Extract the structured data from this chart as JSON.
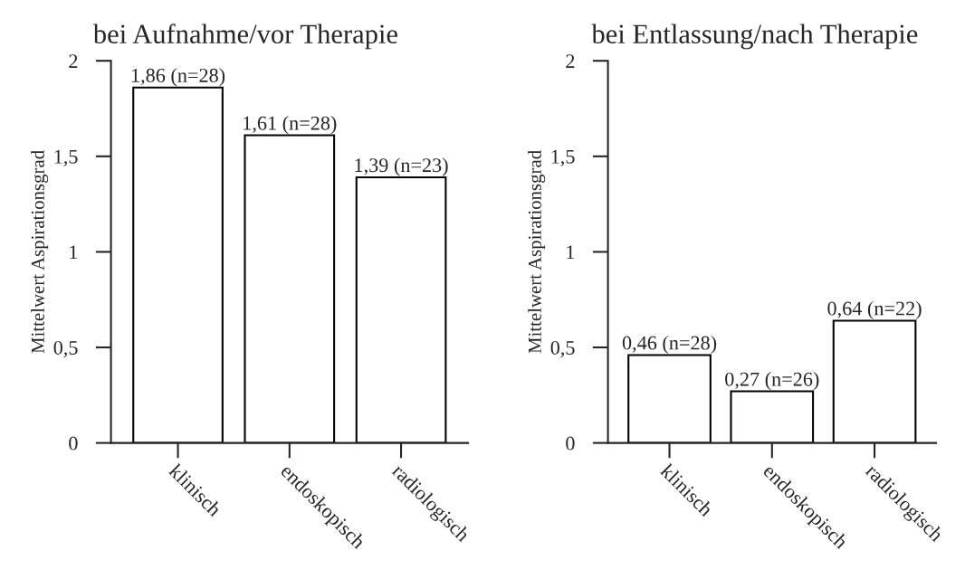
{
  "chart_data": [
    {
      "type": "bar",
      "title": "bei Aufnahme/vor Therapie",
      "ylabel": "Mittelwert Aspirationsgrad",
      "categories": [
        "klinisch",
        "endoskopisch",
        "radiologisch"
      ],
      "values": [
        1.86,
        1.61,
        1.39
      ],
      "value_labels": [
        "1,86 (n=28)",
        "1,61 (n=28)",
        "1,39 (n=23)"
      ],
      "colors": [
        "#ffffff",
        "#ffffff",
        "#ffffff"
      ],
      "ylim": [
        0,
        2
      ],
      "yticks": [
        {
          "value": 0,
          "label": "0"
        },
        {
          "value": 0.5,
          "label": "0,5"
        },
        {
          "value": 1,
          "label": "1"
        },
        {
          "value": 1.5,
          "label": "1,5"
        },
        {
          "value": 2,
          "label": "2"
        }
      ],
      "grid": false,
      "legend": false
    },
    {
      "type": "bar",
      "title": "bei Entlassung/nach Therapie",
      "ylabel": "Mittelwert Aspirationsgrad",
      "categories": [
        "klinisch",
        "endoskopisch",
        "radiologisch"
      ],
      "values": [
        0.46,
        0.27,
        0.64
      ],
      "value_labels": [
        "0,46 (n=28)",
        "0,27 (n=26)",
        "0,64 (n=22)"
      ],
      "colors": [
        "#ffffff",
        "#ffffff",
        "#ffffff"
      ],
      "ylim": [
        0,
        2
      ],
      "yticks": [
        {
          "value": 0,
          "label": "0"
        },
        {
          "value": 0.5,
          "label": "0,5"
        },
        {
          "value": 1,
          "label": "1"
        },
        {
          "value": 1.5,
          "label": "1,5"
        },
        {
          "value": 2,
          "label": "2"
        }
      ],
      "grid": false,
      "legend": false
    }
  ]
}
